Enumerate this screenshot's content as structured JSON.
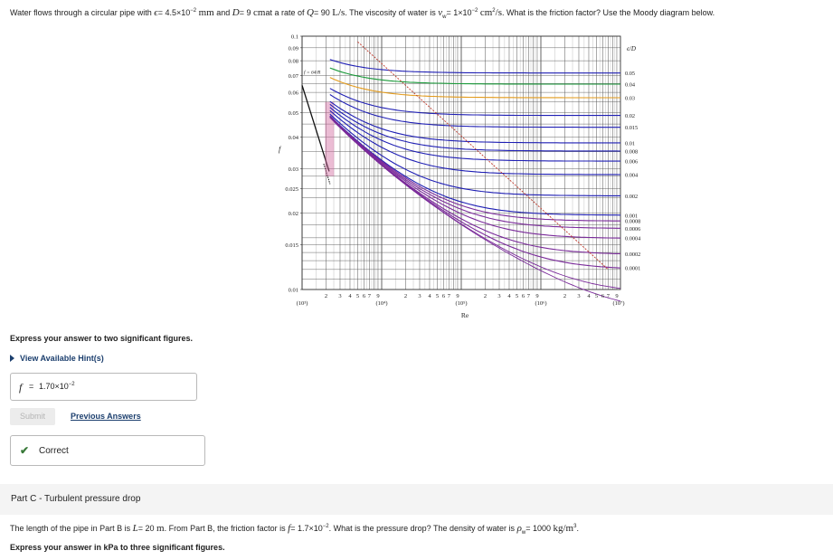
{
  "question_b": {
    "t1": "Water flows through a circular pipe with",
    "eps_sym": "ϵ",
    "eps_val": "= 4.5×10",
    "eps_exp": "−2",
    "eps_unit": "mm",
    "t2": "and",
    "d_sym": "D",
    "d_val": "= 9",
    "d_unit": "cm",
    "t3": "at a rate of",
    "q_sym": "Q",
    "q_val": "= 90",
    "q_unit": "L/s",
    "t4": ". The viscosity of water is",
    "nu_sym": "ν",
    "nu_sub": "w",
    "nu_val": "= 1×10",
    "nu_exp": "−2",
    "nu_unit": "cm",
    "nu_unit_exp": "2",
    "nu_unit2": "/s",
    "t5": ". What is the friction factor? Use the Moody diagram below."
  },
  "moody": {
    "yticks": [
      "0.1",
      "0.09",
      "0.08",
      "0.07",
      "0.06",
      "0.05",
      "0.04",
      "0.03",
      "0.025",
      "0.02",
      "0.015",
      "0.01"
    ],
    "ylabel": "f",
    "xdecades": [
      "(10³)",
      "(10⁴)",
      "(10⁵)",
      "(10⁶)",
      "(10⁷)"
    ],
    "xminor": [
      "2",
      "3",
      "4",
      "5",
      "6",
      "7",
      "9"
    ],
    "xlabel": "Re",
    "laminar_label": "f = 64/R",
    "rr_header": "ϵ/D",
    "rr_labels": [
      "0.05",
      "0.04",
      "0.03",
      "0.02",
      "0.015",
      "0.01",
      "0.008",
      "0.006",
      "0.004",
      "0.002",
      "0.001",
      "0.0008",
      "0.0006",
      "0.0004",
      "0.0002",
      "0.0001"
    ],
    "colors": {
      "blue": "#1f1fb4",
      "green": "#1a9a3a",
      "orange": "#e39a1a",
      "purple": "#7a2a9a",
      "pink": "#d36aa0",
      "grid": "#555555"
    }
  },
  "instruction": "Express your answer to two significant figures.",
  "hint": "View Available Hint(s)",
  "answer": {
    "label": "f",
    "eq": "=",
    "value": "1.70×10",
    "exp": "−2"
  },
  "buttons": {
    "submit": "Submit",
    "previous": "Previous Answers"
  },
  "feedback": {
    "icon": "check-icon",
    "text": "Correct"
  },
  "part_c": {
    "title": "Part C - Turbulent pressure drop"
  },
  "question_c": {
    "t1": "The length of the pipe in Part B is",
    "l_sym": "L",
    "l_val": "= 20",
    "l_unit": "m",
    "t2": ". From Part B, the friction factor is",
    "f_sym": "f",
    "f_val": "= 1.7×10",
    "f_exp": "−2",
    "t3": ". What is the pressure drop? The density of water is",
    "rho_sym": "ρ",
    "rho_sub": "w",
    "rho_val": "= 1000",
    "rho_unit": "kg/m",
    "rho_exp": "3",
    "t4": "."
  },
  "instruction_c": "Express your answer in kPa to three significant figures."
}
